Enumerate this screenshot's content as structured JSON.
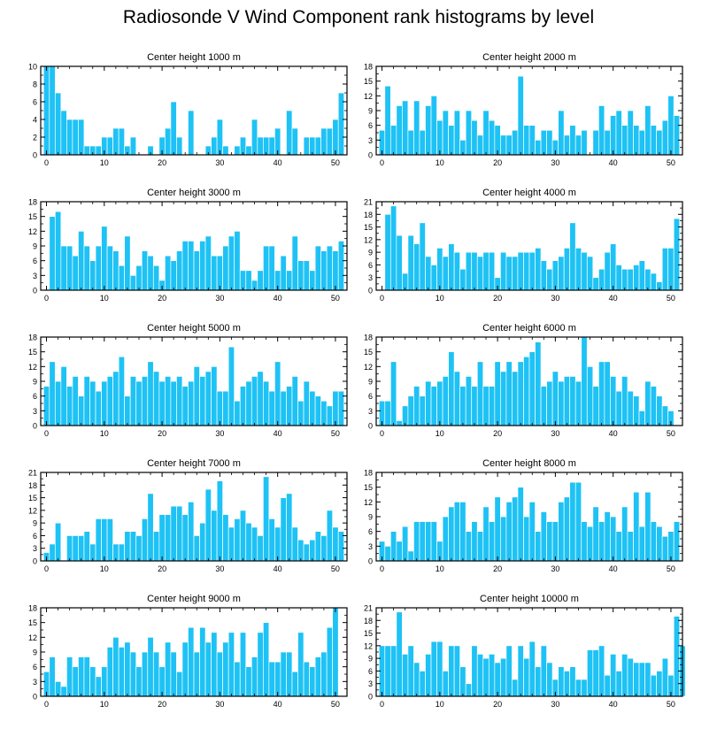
{
  "title": "Radiosonde V Wind Component rank histograms by level",
  "colors": {
    "bar": "#1ec2f5",
    "bar_stroke": "#ffffff",
    "axis": "#000000"
  },
  "chart_data": [
    {
      "type": "bar",
      "title": "Center height 1000 m",
      "xlim": [
        -1,
        52
      ],
      "ylim": [
        0,
        10
      ],
      "xticks": [
        0,
        10,
        20,
        30,
        40,
        50
      ],
      "yticks": [
        0,
        2,
        4,
        6,
        8,
        10
      ],
      "values": [
        10,
        10,
        7,
        5,
        4,
        4,
        4,
        1,
        1,
        1,
        2,
        2,
        3,
        3,
        1,
        2,
        0,
        0,
        1,
        0,
        2,
        3,
        6,
        2,
        0,
        5,
        0,
        0,
        1,
        2,
        4,
        1,
        0,
        1,
        2,
        1,
        4,
        2,
        2,
        2,
        3,
        0,
        5,
        3,
        0,
        2,
        2,
        2,
        3,
        3,
        4,
        7
      ]
    },
    {
      "type": "bar",
      "title": "Center height 2000 m",
      "xlim": [
        -1,
        52
      ],
      "ylim": [
        0,
        18
      ],
      "xticks": [
        0,
        10,
        20,
        30,
        40,
        50
      ],
      "yticks": [
        0,
        3,
        6,
        9,
        12,
        15,
        18
      ],
      "values": [
        5,
        14,
        6,
        10,
        11,
        5,
        11,
        5,
        10,
        12,
        7,
        9,
        6,
        9,
        3,
        9,
        7,
        4,
        9,
        7,
        6,
        4,
        4,
        5,
        16,
        6,
        6,
        3,
        5,
        5,
        3,
        9,
        4,
        6,
        4,
        5,
        0,
        5,
        10,
        5,
        8,
        9,
        6,
        9,
        6,
        5,
        10,
        6,
        5,
        7,
        12,
        8
      ]
    },
    {
      "type": "bar",
      "title": "Center height 3000 m",
      "xlim": [
        -1,
        52
      ],
      "ylim": [
        0,
        18
      ],
      "xticks": [
        0,
        10,
        20,
        30,
        40,
        50
      ],
      "yticks": [
        0,
        3,
        6,
        9,
        12,
        15,
        18
      ],
      "values": [
        0,
        15,
        16,
        9,
        9,
        7,
        12,
        9,
        6,
        9,
        13,
        9,
        8,
        5,
        11,
        3,
        5,
        8,
        7,
        5,
        2,
        7,
        6,
        8,
        10,
        10,
        8,
        10,
        11,
        7,
        7,
        9,
        11,
        12,
        4,
        4,
        2,
        4,
        9,
        9,
        4,
        7,
        4,
        11,
        6,
        6,
        4,
        9,
        8,
        9,
        8,
        10
      ]
    },
    {
      "type": "bar",
      "title": "Center height 4000 m",
      "xlim": [
        -1,
        52
      ],
      "ylim": [
        0,
        21
      ],
      "xticks": [
        0,
        10,
        20,
        30,
        40,
        50
      ],
      "yticks": [
        0,
        3,
        6,
        9,
        12,
        15,
        18,
        21
      ],
      "values": [
        0,
        18,
        20,
        13,
        4,
        13,
        11,
        16,
        8,
        6,
        10,
        8,
        11,
        9,
        5,
        9,
        9,
        8,
        9,
        9,
        3,
        9,
        8,
        8,
        9,
        9,
        9,
        10,
        7,
        5,
        7,
        8,
        10,
        16,
        10,
        9,
        8,
        3,
        5,
        9,
        11,
        6,
        5,
        5,
        6,
        7,
        5,
        4,
        2,
        10,
        10,
        17
      ]
    },
    {
      "type": "bar",
      "title": "Center height 5000 m",
      "xlim": [
        -1,
        52
      ],
      "ylim": [
        0,
        18
      ],
      "xticks": [
        0,
        10,
        20,
        30,
        40,
        50
      ],
      "yticks": [
        0,
        3,
        6,
        9,
        12,
        15,
        18
      ],
      "values": [
        8,
        13,
        9,
        12,
        8,
        10,
        6,
        10,
        9,
        7,
        9,
        10,
        11,
        14,
        6,
        10,
        9,
        10,
        13,
        11,
        9,
        10,
        9,
        10,
        8,
        9,
        12,
        10,
        11,
        12,
        7,
        7,
        16,
        5,
        8,
        9,
        10,
        11,
        9,
        7,
        13,
        7,
        8,
        10,
        5,
        9,
        7,
        6,
        5,
        4,
        7,
        7
      ]
    },
    {
      "type": "bar",
      "title": "Center height 6000 m",
      "xlim": [
        -1,
        52
      ],
      "ylim": [
        0,
        18
      ],
      "xticks": [
        0,
        10,
        20,
        30,
        40,
        50
      ],
      "yticks": [
        0,
        3,
        6,
        9,
        12,
        15,
        18
      ],
      "values": [
        5,
        5,
        13,
        1,
        4,
        6,
        8,
        6,
        9,
        8,
        9,
        10,
        15,
        11,
        8,
        10,
        8,
        13,
        8,
        8,
        13,
        11,
        13,
        11,
        13,
        14,
        15,
        17,
        8,
        9,
        11,
        9,
        10,
        10,
        9,
        18,
        12,
        8,
        13,
        13,
        10,
        7,
        10,
        7,
        6,
        3,
        9,
        8,
        6,
        4,
        3
      ]
    },
    {
      "type": "bar",
      "title": "Center height 7000 m",
      "xlim": [
        -1,
        52
      ],
      "ylim": [
        0,
        21
      ],
      "xticks": [
        0,
        10,
        20,
        30,
        40,
        50
      ],
      "yticks": [
        0,
        3,
        6,
        9,
        12,
        15,
        18,
        21
      ],
      "values": [
        2,
        4,
        9,
        0,
        6,
        6,
        6,
        7,
        4,
        10,
        10,
        10,
        4,
        4,
        7,
        7,
        6,
        10,
        16,
        7,
        11,
        11,
        13,
        13,
        11,
        14,
        6,
        9,
        17,
        12,
        19,
        11,
        8,
        10,
        12,
        9,
        8,
        6,
        20,
        10,
        8,
        15,
        16,
        8,
        5,
        4,
        5,
        7,
        6,
        12,
        8,
        7
      ]
    },
    {
      "type": "bar",
      "title": "Center height 8000 m",
      "xlim": [
        -1,
        52
      ],
      "ylim": [
        0,
        18
      ],
      "xticks": [
        0,
        10,
        20,
        30,
        40,
        50
      ],
      "yticks": [
        0,
        3,
        6,
        9,
        12,
        15,
        18
      ],
      "values": [
        4,
        3,
        6,
        4,
        7,
        2,
        8,
        8,
        8,
        8,
        4,
        9,
        11,
        12,
        12,
        6,
        8,
        6,
        11,
        8,
        13,
        9,
        12,
        13,
        15,
        9,
        12,
        6,
        10,
        8,
        8,
        12,
        13,
        16,
        16,
        8,
        7,
        11,
        8,
        10,
        9,
        6,
        11,
        6,
        14,
        7,
        14,
        8,
        7,
        5,
        6,
        8
      ]
    },
    {
      "type": "bar",
      "title": "Center height 9000 m",
      "xlim": [
        -1,
        52
      ],
      "ylim": [
        0,
        18
      ],
      "xticks": [
        0,
        10,
        20,
        30,
        40,
        50
      ],
      "yticks": [
        0,
        3,
        6,
        9,
        12,
        15,
        18
      ],
      "values": [
        5,
        8,
        3,
        2,
        8,
        6,
        8,
        8,
        6,
        4,
        6,
        10,
        12,
        10,
        11,
        9,
        6,
        9,
        12,
        9,
        6,
        11,
        9,
        5,
        11,
        14,
        9,
        14,
        11,
        13,
        9,
        11,
        13,
        7,
        13,
        6,
        8,
        13,
        15,
        7,
        7,
        9,
        9,
        5,
        13,
        7,
        6,
        8,
        9,
        14,
        18
      ]
    },
    {
      "type": "bar",
      "title": "Center height 10000 m",
      "xlim": [
        -1,
        52
      ],
      "ylim": [
        0,
        21
      ],
      "xticks": [
        0,
        10,
        20,
        30,
        40,
        50
      ],
      "yticks": [
        0,
        3,
        6,
        9,
        12,
        15,
        18,
        21
      ],
      "values": [
        12,
        12,
        12,
        20,
        10,
        12,
        8,
        6,
        10,
        13,
        13,
        6,
        12,
        12,
        7,
        3,
        12,
        10,
        9,
        10,
        8,
        9,
        12,
        4,
        12,
        9,
        13,
        7,
        12,
        8,
        4,
        7,
        6,
        7,
        4,
        4,
        11,
        11,
        12,
        5,
        10,
        6,
        10,
        9,
        8,
        8,
        8,
        5,
        6,
        9,
        5,
        19,
        12
      ]
    }
  ]
}
